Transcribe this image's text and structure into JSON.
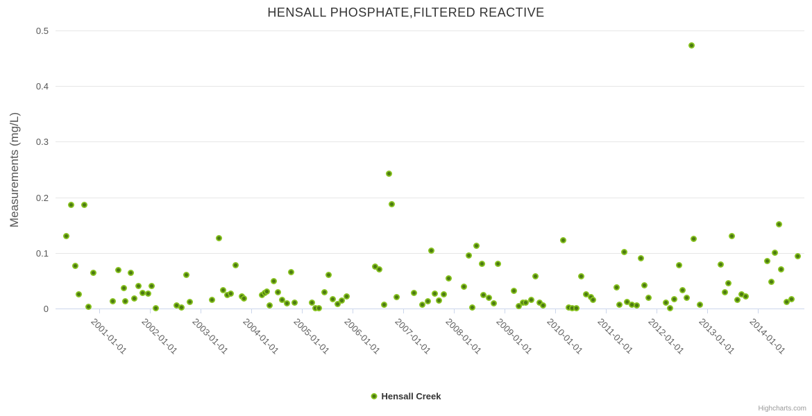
{
  "title": "HENSALL PHOSPHATE,FILTERED REACTIVE",
  "legend": {
    "items": [
      {
        "label": "Hensall Creek",
        "marker_color": "#86c11f"
      }
    ]
  },
  "credits": "Highcharts.com",
  "colors": {
    "background": "#ffffff",
    "point_outer": "#86c11f",
    "point_core": "#4c7a12",
    "grid": "#e6e6e6",
    "axis_line": "#ccd6eb",
    "title_text": "#333333",
    "yaxis_title_text": "#555555",
    "y_label_text": "#555555",
    "x_label_text": "#606060",
    "legend_text": "#333333",
    "credits_text": "#999999"
  },
  "chart_data": {
    "type": "scatter",
    "title": "HENSALL PHOSPHATE,FILTERED REACTIVE",
    "xlabel": "",
    "ylabel": "Measurements (mg/L)",
    "ylim": [
      0,
      0.5
    ],
    "y_ticks": [
      "0",
      "0.1",
      "0.2",
      "0.3",
      "0.4",
      "0.5"
    ],
    "x_ticks": [
      "2001-01-01",
      "2002-01-01",
      "2003-01-01",
      "2004-01-01",
      "2005-01-01",
      "2006-01-01",
      "2007-01-01",
      "2008-01-01",
      "2009-01-01",
      "2010-01-01",
      "2011-01-01",
      "2012-01-01",
      "2013-01-01",
      "2014-01-01"
    ],
    "x_range": [
      "2000-02-20",
      "2014-12-01"
    ],
    "grid": "horizontal-only",
    "legend_position": "bottom-center",
    "series": [
      {
        "name": "Hensall Creek",
        "points": [
          [
            "2000-05-07",
            0.13
          ],
          [
            "2000-06-13",
            0.186
          ],
          [
            "2000-09-13",
            0.186
          ],
          [
            "2000-07-12",
            0.077
          ],
          [
            "2000-08-07",
            0.026
          ],
          [
            "2000-10-15",
            0.003
          ],
          [
            "2000-11-18",
            0.064
          ],
          [
            "2001-04-08",
            0.013
          ],
          [
            "2001-05-18",
            0.069
          ],
          [
            "2001-06-24",
            0.037
          ],
          [
            "2001-07-05",
            0.013
          ],
          [
            "2001-08-14",
            0.064
          ],
          [
            "2001-09-09",
            0.018
          ],
          [
            "2001-10-08",
            0.04
          ],
          [
            "2001-11-11",
            0.028
          ],
          [
            "2001-12-17",
            0.027
          ],
          [
            "2002-01-12",
            0.04
          ],
          [
            "2002-02-14",
            0.001
          ],
          [
            "2002-07-08",
            0.005
          ],
          [
            "2002-08-14",
            0.002
          ],
          [
            "2002-09-20",
            0.061
          ],
          [
            "2002-10-15",
            0.012
          ],
          [
            "2003-03-24",
            0.015
          ],
          [
            "2003-05-11",
            0.126
          ],
          [
            "2003-06-13",
            0.033
          ],
          [
            "2003-07-08",
            0.024
          ],
          [
            "2003-08-03",
            0.027
          ],
          [
            "2003-09-09",
            0.078
          ],
          [
            "2003-10-26",
            0.022
          ],
          [
            "2003-11-07",
            0.018
          ],
          [
            "2004-03-17",
            0.024
          ],
          [
            "2004-04-05",
            0.028
          ],
          [
            "2004-04-23",
            0.031
          ],
          [
            "2004-05-11",
            0.006
          ],
          [
            "2004-06-09",
            0.049
          ],
          [
            "2004-07-12",
            0.029
          ],
          [
            "2004-08-11",
            0.015
          ],
          [
            "2004-09-13",
            0.009
          ],
          [
            "2004-10-15",
            0.065
          ],
          [
            "2004-11-11",
            0.011
          ],
          [
            "2005-03-13",
            0.01
          ],
          [
            "2005-04-05",
            0.001
          ],
          [
            "2005-05-03",
            0.001
          ],
          [
            "2005-06-09",
            0.029
          ],
          [
            "2005-07-12",
            0.061
          ],
          [
            "2005-08-11",
            0.017
          ],
          [
            "2005-09-13",
            0.008
          ],
          [
            "2005-10-15",
            0.014
          ],
          [
            "2005-11-18",
            0.022
          ],
          [
            "2006-06-13",
            0.076
          ],
          [
            "2006-07-12",
            0.071
          ],
          [
            "2006-08-14",
            0.007
          ],
          [
            "2006-09-20",
            0.243
          ],
          [
            "2006-10-08",
            0.188
          ],
          [
            "2006-11-14",
            0.02
          ],
          [
            "2007-03-17",
            0.028
          ],
          [
            "2007-05-14",
            0.007
          ],
          [
            "2007-06-24",
            0.013
          ],
          [
            "2007-07-19",
            0.104
          ],
          [
            "2007-08-14",
            0.027
          ],
          [
            "2007-09-13",
            0.014
          ],
          [
            "2007-10-19",
            0.025
          ],
          [
            "2007-11-25",
            0.054
          ],
          [
            "2008-03-13",
            0.039
          ],
          [
            "2008-04-19",
            0.096
          ],
          [
            "2008-05-11",
            0.002
          ],
          [
            "2008-06-09",
            0.113
          ],
          [
            "2008-07-19",
            0.08
          ],
          [
            "2008-07-30",
            0.024
          ],
          [
            "2008-09-09",
            0.019
          ],
          [
            "2008-10-12",
            0.009
          ],
          [
            "2008-11-14",
            0.08
          ],
          [
            "2009-03-09",
            0.032
          ],
          [
            "2009-04-12",
            0.004
          ],
          [
            "2009-05-11",
            0.01
          ],
          [
            "2009-06-02",
            0.01
          ],
          [
            "2009-07-12",
            0.015
          ],
          [
            "2009-08-11",
            0.058
          ],
          [
            "2009-09-09",
            0.01
          ],
          [
            "2009-10-05",
            0.005
          ],
          [
            "2010-02-27",
            0.123
          ],
          [
            "2010-04-08",
            0.002
          ],
          [
            "2010-05-03",
            0.001
          ],
          [
            "2010-06-02",
            0.001
          ],
          [
            "2010-07-08",
            0.058
          ],
          [
            "2010-08-11",
            0.026
          ],
          [
            "2010-09-17",
            0.02
          ],
          [
            "2010-10-01",
            0.016
          ],
          [
            "2011-03-17",
            0.038
          ],
          [
            "2011-04-05",
            0.007
          ],
          [
            "2011-05-11",
            0.101
          ],
          [
            "2011-06-02",
            0.012
          ],
          [
            "2011-07-05",
            0.007
          ],
          [
            "2011-08-11",
            0.006
          ],
          [
            "2011-09-09",
            0.091
          ],
          [
            "2011-10-05",
            0.042
          ],
          [
            "2011-11-03",
            0.019
          ],
          [
            "2012-03-09",
            0.01
          ],
          [
            "2012-04-08",
            0.0005
          ],
          [
            "2012-05-07",
            0.017
          ],
          [
            "2012-06-09",
            0.078
          ],
          [
            "2012-07-08",
            0.033
          ],
          [
            "2012-08-07",
            0.019
          ],
          [
            "2012-09-09",
            0.473
          ],
          [
            "2012-09-27",
            0.125
          ],
          [
            "2012-11-07",
            0.007
          ],
          [
            "2013-04-08",
            0.079
          ],
          [
            "2013-05-07",
            0.029
          ],
          [
            "2013-06-02",
            0.046
          ],
          [
            "2013-06-27",
            0.13
          ],
          [
            "2013-08-03",
            0.015
          ],
          [
            "2013-09-05",
            0.025
          ],
          [
            "2013-10-05",
            0.022
          ],
          [
            "2014-03-09",
            0.085
          ],
          [
            "2014-04-05",
            0.048
          ],
          [
            "2014-05-03",
            0.1
          ],
          [
            "2014-06-02",
            0.151
          ],
          [
            "2014-06-17",
            0.071
          ],
          [
            "2014-07-27",
            0.012
          ],
          [
            "2014-09-02",
            0.017
          ],
          [
            "2014-10-15",
            0.094
          ]
        ]
      }
    ]
  }
}
